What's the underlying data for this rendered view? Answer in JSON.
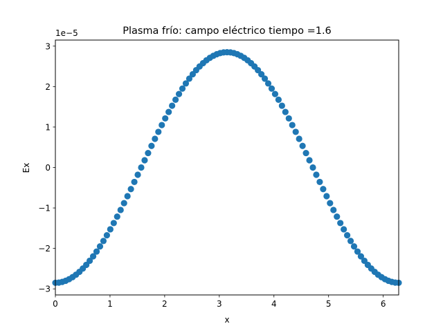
{
  "chart_data": {
    "type": "scatter",
    "title": "Plasma frío: campo eléctrico  tiempo =1.6",
    "xlabel": "x",
    "ylabel": "Ex",
    "y_offset_label": "1e−5",
    "xlim": [
      0,
      6.2832
    ],
    "ylim": [
      -3.15,
      3.15
    ],
    "x_ticks": [
      0,
      1,
      2,
      3,
      4,
      5,
      6
    ],
    "y_ticks": [
      -3,
      -2,
      -1,
      0,
      1,
      2,
      3
    ],
    "x_tick_labels": [
      "0",
      "1",
      "2",
      "3",
      "4",
      "5",
      "6"
    ],
    "y_tick_labels": [
      "−3",
      "−2",
      "−1",
      "0",
      "1",
      "2",
      "3"
    ],
    "grid": false,
    "marker_color": "#1f77b4",
    "series": [
      {
        "function": "Ex(x) = -2.85e-5 * cos(x)",
        "amplitude": 2.85,
        "x_start": 0,
        "x_end": 6.2832,
        "num_points": 101
      }
    ]
  }
}
